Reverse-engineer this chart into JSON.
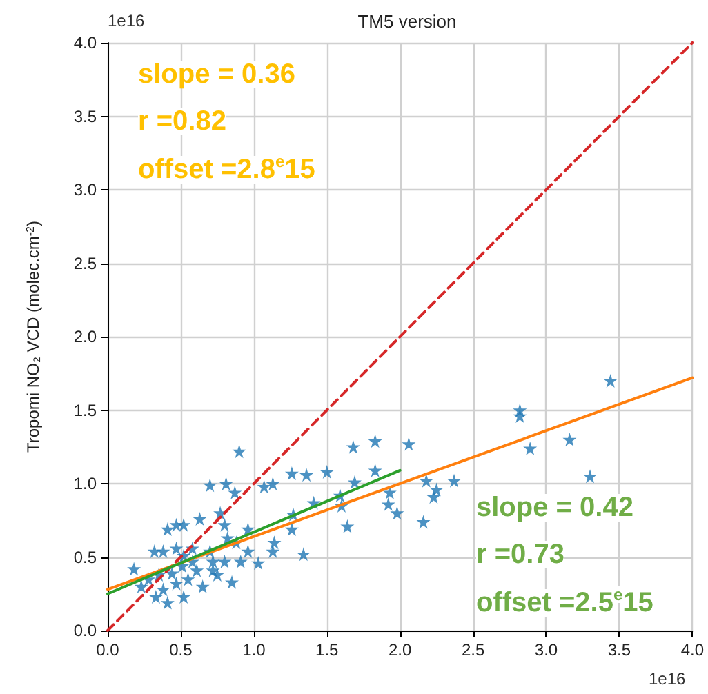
{
  "chart_data": {
    "type": "scatter",
    "title": "TM5 version",
    "ylabel": "Tropomi NO₂ VCD (molec.cm$^{-2}$)",
    "annotations": [
      "1e16",
      "1e16",
      "slope = 0.36",
      "r =0.82",
      "offset =2.8$^{e}$15",
      "slope = 0.42",
      "r =0.73",
      "offset =2.5$^{e}$15"
    ],
    "xlim": [
      0,
      4
    ],
    "ylim": [
      0,
      4
    ],
    "xticks": [
      {
        "value": 0,
        "label": "0.0"
      },
      {
        "value": 0.5,
        "label": "0.5"
      },
      {
        "value": 1,
        "label": "1.0"
      },
      {
        "value": 1.5,
        "label": "1.5"
      },
      {
        "value": 2,
        "label": "2.0"
      },
      {
        "value": 2.5,
        "label": "2.5"
      },
      {
        "value": 3,
        "label": "3.0"
      },
      {
        "value": 3.5,
        "label": "3.5"
      },
      {
        "value": 4,
        "label": "4.0"
      }
    ],
    "yticks": [
      {
        "value": 0,
        "label": "0.0"
      },
      {
        "value": 0.5,
        "label": "0.5"
      },
      {
        "value": 1,
        "label": "1.0"
      },
      {
        "value": 1.5,
        "label": "1.5"
      },
      {
        "value": 2,
        "label": "2.0"
      },
      {
        "value": 2.5,
        "label": "2.5"
      },
      {
        "value": 3,
        "label": "3.0"
      },
      {
        "value": 3.5,
        "label": "3.5"
      },
      {
        "value": 4,
        "label": "4.0"
      }
    ],
    "grid": true,
    "series": [
      {
        "marker": "star",
        "color": "#1f77b4",
        "x": [
          0.9,
          0.7,
          0.81,
          0.87,
          1.07,
          1.13,
          1.26,
          1.36,
          1.5,
          1.68,
          1.83,
          1.69,
          1.83,
          1.41,
          1.59,
          1.6,
          1.64,
          1.26,
          1.27,
          1.34,
          1.14,
          1.13,
          1.03,
          0.96,
          0.91,
          0.96,
          0.88,
          0.82,
          0.8,
          0.77,
          0.63,
          0.52,
          0.41,
          0.47,
          0.32,
          0.38,
          0.47,
          0.18,
          0.23,
          0.33,
          0.41,
          0.52,
          0.55,
          0.61,
          0.65,
          0.72,
          0.72,
          0.8,
          0.75,
          0.85,
          0.58,
          0.51,
          0.44,
          0.47,
          0.38,
          0.28,
          0.35,
          0.58,
          0.7,
          0.52,
          3.44,
          2.82,
          2.82,
          2.89,
          3.16,
          3.3,
          2.37,
          2.16,
          2.18,
          2.25,
          2.23,
          1.93,
          1.92,
          1.98,
          2.06
        ],
        "values": [
          1.22,
          0.99,
          1.0,
          0.94,
          0.98,
          1.0,
          1.07,
          1.06,
          1.08,
          1.25,
          1.29,
          1.01,
          1.09,
          0.87,
          0.92,
          0.85,
          0.71,
          0.69,
          0.79,
          0.52,
          0.6,
          0.54,
          0.46,
          0.54,
          0.47,
          0.69,
          0.6,
          0.63,
          0.72,
          0.8,
          0.76,
          0.72,
          0.69,
          0.72,
          0.54,
          0.54,
          0.56,
          0.42,
          0.3,
          0.23,
          0.19,
          0.23,
          0.35,
          0.41,
          0.3,
          0.41,
          0.47,
          0.47,
          0.38,
          0.33,
          0.47,
          0.44,
          0.39,
          0.32,
          0.28,
          0.35,
          0.38,
          0.56,
          0.54,
          0.51,
          1.7,
          1.5,
          1.46,
          1.24,
          1.3,
          1.05,
          1.02,
          0.74,
          1.02,
          0.96,
          0.91,
          0.94,
          0.86,
          0.8,
          1.27
        ]
      },
      {
        "type": "line",
        "line_style": "dashed",
        "color": "#d62728",
        "x": [
          0,
          4
        ],
        "values": [
          0,
          4
        ]
      },
      {
        "type": "line",
        "line_style": "solid",
        "color": "#ff7f0e",
        "x": [
          0,
          4
        ],
        "values": [
          0.28,
          1.72
        ]
      },
      {
        "type": "line",
        "line_style": "solid",
        "color": "#2ca02c",
        "x": [
          0,
          2
        ],
        "values": [
          0.25,
          1.09
        ]
      }
    ]
  }
}
